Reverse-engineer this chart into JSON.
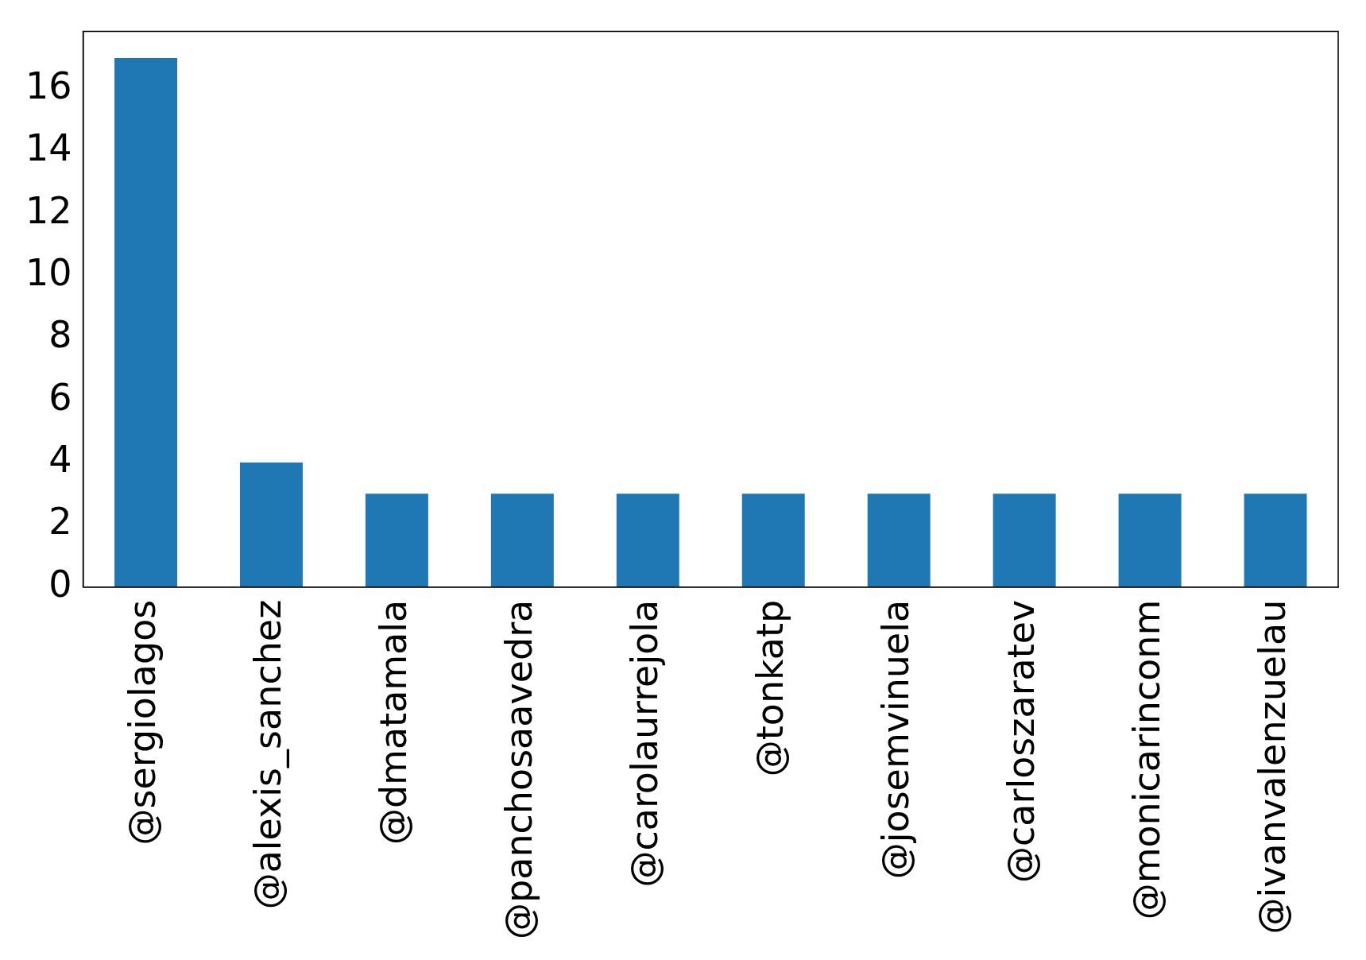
{
  "chart_data": {
    "type": "bar",
    "categories": [
      "@sergiolagos",
      "@alexis_sanchez",
      "@dmatamala",
      "@panchosaavedra",
      "@carolaurrejola",
      "@tonkatp",
      "@josemvinuela",
      "@carloszaratev",
      "@monicarinconm",
      "@ivanvalenzuelau"
    ],
    "values": [
      17,
      4,
      3,
      3,
      3,
      3,
      3,
      3,
      3,
      3
    ],
    "color": "#1f77b4",
    "ylim": [
      0,
      17.85
    ],
    "yticks": [
      0,
      2,
      4,
      6,
      8,
      10,
      12,
      14,
      16
    ],
    "grid": false,
    "legend": false
  }
}
